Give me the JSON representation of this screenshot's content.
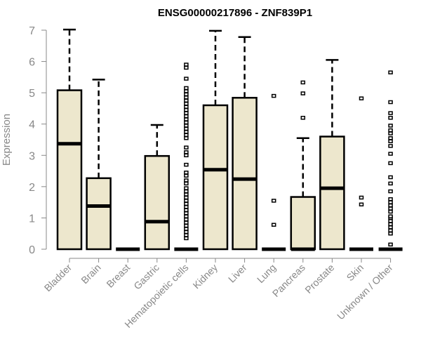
{
  "chart_data": {
    "type": "boxplot",
    "title": "ENSG00000217896 - ZNF839P1",
    "xlabel": "",
    "ylabel": "Expression",
    "ylim": [
      0,
      7
    ],
    "yticks": [
      0,
      1,
      2,
      3,
      4,
      5,
      6,
      7
    ],
    "grid": false,
    "colors": {
      "box_fill": "#ede7cd",
      "stroke": "#000000",
      "axis": "#888888",
      "label": "#888888"
    },
    "categories": [
      "Bladder",
      "Brain",
      "Breast",
      "Gastric",
      "Hematopoietic cells",
      "Kidney",
      "Liver",
      "Lung",
      "Pancreas",
      "Prostate",
      "Skin",
      "Unknown / Other"
    ],
    "boxes": [
      {
        "min": 0,
        "q1": 0,
        "median": 3.37,
        "q3": 5.08,
        "max": 7.02,
        "outliers": []
      },
      {
        "min": 0,
        "q1": 0,
        "median": 1.38,
        "q3": 2.27,
        "max": 5.42,
        "outliers": []
      },
      {
        "min": 0,
        "q1": 0,
        "median": 0,
        "q3": 0,
        "max": 0,
        "outliers": []
      },
      {
        "min": 0,
        "q1": 0,
        "median": 0.88,
        "q3": 2.98,
        "max": 3.97,
        "outliers": []
      },
      {
        "min": 0,
        "q1": 0,
        "median": 0,
        "q3": 0,
        "max": 0,
        "outliers": [
          0.35,
          0.45,
          0.55,
          0.65,
          0.75,
          0.85,
          0.95,
          1.05,
          1.15,
          1.25,
          1.35,
          1.45,
          1.55,
          1.65,
          1.75,
          1.85,
          1.95,
          2.1,
          2.2,
          2.35,
          2.45,
          2.7,
          3.0,
          3.1,
          3.25,
          3.55,
          3.65,
          3.75,
          3.85,
          3.95,
          4.05,
          4.15,
          4.25,
          4.35,
          4.45,
          4.55,
          4.65,
          4.75,
          4.85,
          4.95,
          5.05,
          5.15,
          5.45,
          5.8,
          5.9
        ]
      },
      {
        "min": 0,
        "q1": 0,
        "median": 2.54,
        "q3": 4.6,
        "max": 6.98,
        "outliers": []
      },
      {
        "min": 0,
        "q1": 0,
        "median": 2.24,
        "q3": 4.84,
        "max": 6.78,
        "outliers": []
      },
      {
        "min": 0,
        "q1": 0,
        "median": 0,
        "q3": 0,
        "max": 0,
        "outliers": [
          0.78,
          1.55,
          4.9
        ]
      },
      {
        "min": 0,
        "q1": 0,
        "median": 0,
        "q3": 1.67,
        "max": 3.55,
        "outliers": [
          4.2,
          4.98,
          5.33
        ]
      },
      {
        "min": 0,
        "q1": 0,
        "median": 1.95,
        "q3": 3.6,
        "max": 6.05,
        "outliers": []
      },
      {
        "min": 0,
        "q1": 0,
        "median": 0,
        "q3": 0,
        "max": 0,
        "outliers": [
          1.43,
          1.65,
          4.82
        ]
      },
      {
        "min": 0,
        "q1": 0,
        "median": 0,
        "q3": 0,
        "max": 0,
        "outliers": [
          0.15,
          0.5,
          0.6,
          0.7,
          0.8,
          0.9,
          1.0,
          1.05,
          1.2,
          1.3,
          1.4,
          1.5,
          1.6,
          1.85,
          2.1,
          2.3,
          2.75,
          3.05,
          3.3,
          3.45,
          3.55,
          3.7,
          3.8,
          3.95,
          4.2,
          4.35,
          4.7,
          5.65
        ]
      }
    ]
  }
}
